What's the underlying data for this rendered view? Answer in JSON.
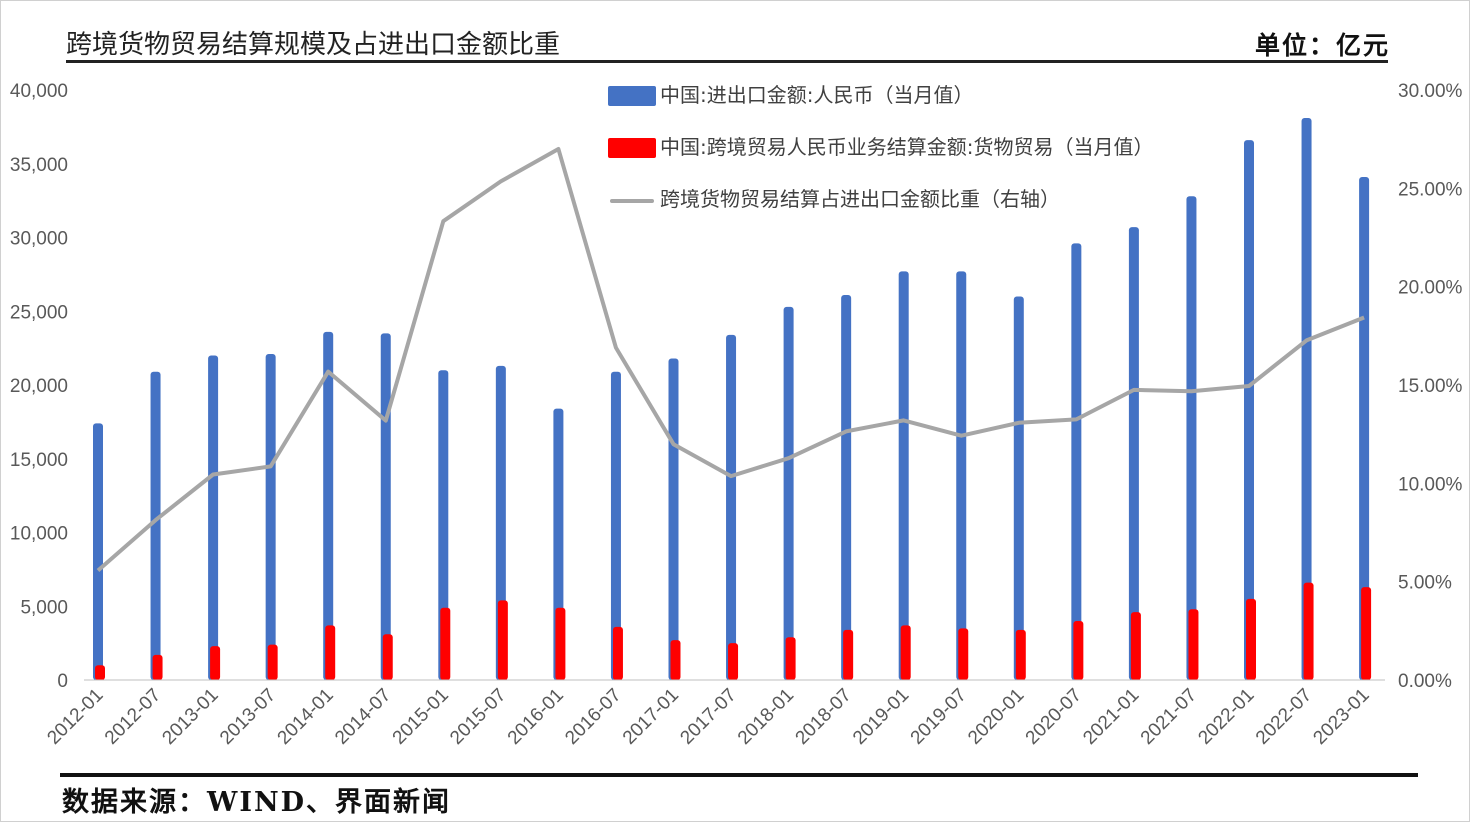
{
  "header": {
    "title": "跨境货物贸易结算规模及占进出口金额比重",
    "unit": "单位：亿元"
  },
  "footer": {
    "source": "数据来源：WIND、界面新闻"
  },
  "colors": {
    "bar_total": "#4472C4",
    "bar_settlement": "#FF0000",
    "line_ratio": "#A6A6A6",
    "axis_text": "#595959"
  },
  "chart_data": {
    "type": "bar",
    "categories": [
      "2012-01",
      "2012-07",
      "2013-01",
      "2013-07",
      "2014-01",
      "2014-07",
      "2015-01",
      "2015-07",
      "2016-01",
      "2016-07",
      "2017-01",
      "2017-07",
      "2018-01",
      "2018-07",
      "2019-01",
      "2019-07",
      "2020-01",
      "2020-07",
      "2021-01",
      "2021-07",
      "2022-01",
      "2022-07",
      "2023-01"
    ],
    "series": [
      {
        "name": "中国:进出口金额:人民币（当月值）",
        "type": "bar",
        "axis": "left",
        "color": "#4472C4",
        "values": [
          17400,
          20900,
          22000,
          22100,
          23600,
          23500,
          21000,
          21300,
          18400,
          20900,
          21800,
          23400,
          25300,
          26100,
          27700,
          27700,
          26000,
          29600,
          30700,
          32800,
          36600,
          38100,
          34100
        ]
      },
      {
        "name": "中国:跨境贸易人民币业务结算金额:货物贸易（当月值）",
        "type": "bar",
        "axis": "left",
        "color": "#FF0000",
        "values": [
          1000,
          1700,
          2300,
          2400,
          3700,
          3100,
          4900,
          5400,
          4900,
          3600,
          2700,
          2500,
          2900,
          3400,
          3700,
          3500,
          3400,
          4000,
          4600,
          4800,
          5500,
          6600,
          6300
        ]
      },
      {
        "name": "跨境货物贸易结算占进出口金额比重（右轴）",
        "type": "line",
        "axis": "right",
        "color": "#A6A6A6",
        "values": [
          0.0557,
          0.0813,
          0.1045,
          0.1086,
          0.1568,
          0.1319,
          0.2333,
          0.2535,
          0.27,
          0.169,
          0.1199,
          0.1037,
          0.1128,
          0.1264,
          0.132,
          0.1242,
          0.1308,
          0.1325,
          0.1475,
          0.1468,
          0.1495,
          0.1727,
          0.1843
        ]
      }
    ],
    "ylim_left": [
      0,
      40000
    ],
    "yticks_left": [
      "0",
      "5,000",
      "10,000",
      "15,000",
      "20,000",
      "25,000",
      "30,000",
      "35,000",
      "40,000"
    ],
    "ylim_right": [
      0,
      0.3
    ],
    "yticks_right": [
      "0.00%",
      "5.00%",
      "10.00%",
      "15.00%",
      "20.00%",
      "25.00%",
      "30.00%"
    ],
    "grid": false,
    "legend_position": "top-center"
  }
}
